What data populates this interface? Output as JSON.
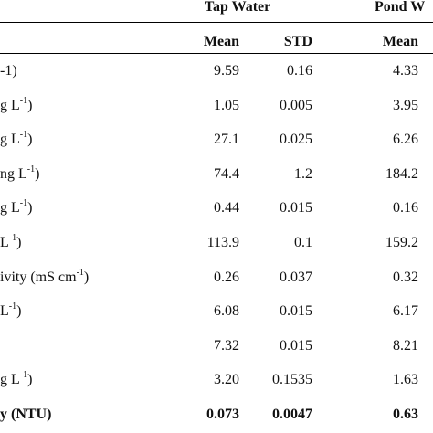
{
  "headers": {
    "group1": "Tap Water",
    "group2": "Pond W",
    "sub1_mean": "Mean",
    "sub1_std": "STD",
    "sub2_mean": "Mean"
  },
  "rows": [
    {
      "label": "-1)",
      "sup": "",
      "tap_mean": "9.59",
      "tap_std": "0.16",
      "pond_mean": "4.33"
    },
    {
      "label": "g L",
      "sup": "-1",
      "suffix": ")",
      "tap_mean": "1.05",
      "tap_std": "0.005",
      "pond_mean": "3.95"
    },
    {
      "label": "g L",
      "sup": "-1",
      "suffix": ")",
      "tap_mean": "27.1",
      "tap_std": "0.025",
      "pond_mean": "6.26"
    },
    {
      "label": "ng L",
      "sup": "-1",
      "suffix": ")",
      "tap_mean": "74.4",
      "tap_std": "1.2",
      "pond_mean": "184.2"
    },
    {
      "label": "g L",
      "sup": "-1",
      "suffix": ")",
      "tap_mean": "0.44",
      "tap_std": "0.015",
      "pond_mean": "0.16"
    },
    {
      "label": " L",
      "sup": "-1",
      "suffix": ")",
      "tap_mean": "113.9",
      "tap_std": "0.1",
      "pond_mean": "159.2"
    },
    {
      "label": "ivity (mS cm",
      "sup": "-1",
      "suffix": ")",
      "tap_mean": "0.26",
      "tap_std": "0.037",
      "pond_mean": "0.32"
    },
    {
      "label": "L",
      "sup": "-1",
      "suffix": ")",
      "tap_mean": "6.08",
      "tap_std": "0.015",
      "pond_mean": "6.17"
    },
    {
      "label": "",
      "sup": "",
      "suffix": "",
      "tap_mean": "7.32",
      "tap_std": "0.015",
      "pond_mean": "8.21"
    },
    {
      "label": "g L",
      "sup": "-1",
      "suffix": ")",
      "tap_mean": "3.20",
      "tap_std": "0.1535",
      "pond_mean": "1.63"
    },
    {
      "label": "y (NTU)",
      "sup": "",
      "suffix": "",
      "tap_mean": "0.073",
      "tap_std": "0.0047",
      "pond_mean": "0.63",
      "bold": true
    }
  ]
}
